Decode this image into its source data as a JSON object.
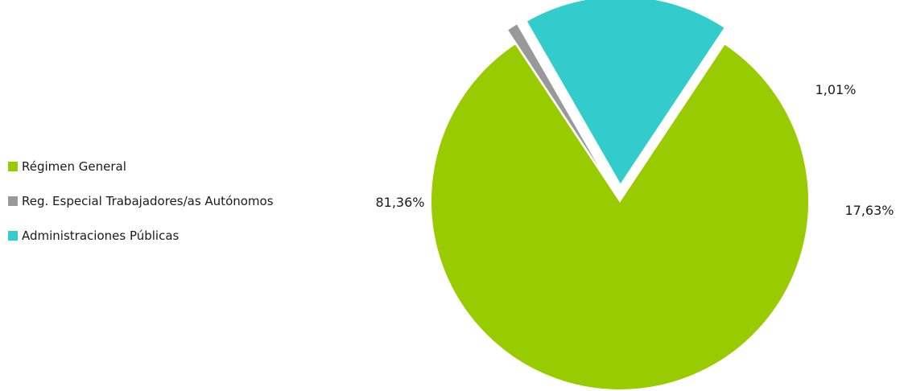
{
  "chart_data": {
    "type": "pie",
    "categories": [
      "Régimen General",
      "Reg. Especial Trabajadores/as Autónomos",
      "Administraciones Públicas"
    ],
    "values": [
      81.36,
      1.01,
      17.63
    ],
    "labels": [
      "81,36%",
      "1,01%",
      "17,63%"
    ],
    "colors": [
      "#99CC00",
      "#999999",
      "#33CCCC"
    ],
    "exploded": [
      false,
      true,
      true
    ],
    "legend_position": "left",
    "title": ""
  }
}
